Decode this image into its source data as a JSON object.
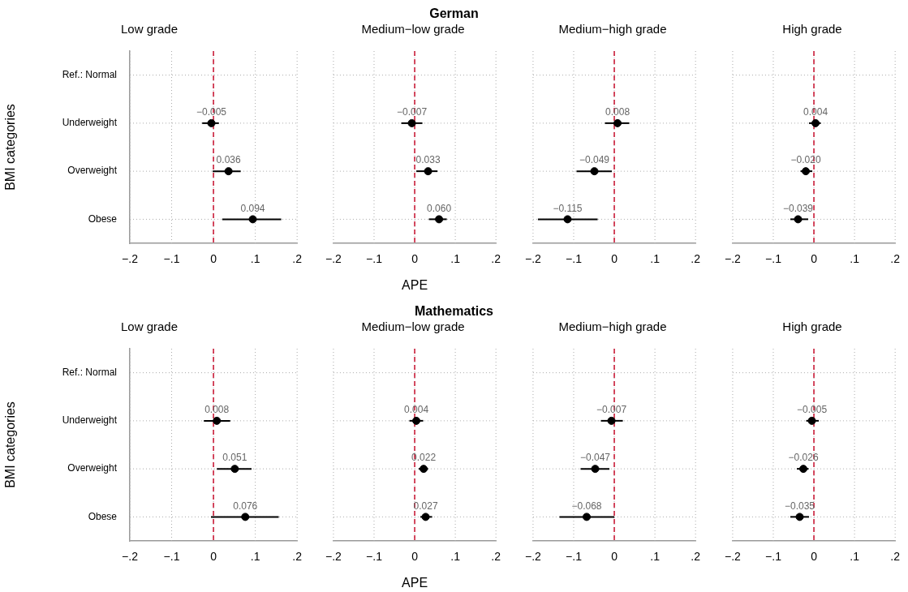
{
  "chart_data": [
    {
      "type": "scatter",
      "orientation": "horizontal",
      "title": "Low grade",
      "annotations": [
        "German"
      ],
      "ylabel": "BMI categories",
      "categories": [
        "Ref.: Normal",
        "Underweight",
        "Overweight",
        "Obese"
      ],
      "values": [
        null,
        -0.005,
        0.036,
        0.094
      ],
      "errors": [
        null,
        [
          -0.027,
          0.013
        ],
        [
          -0.002,
          0.065
        ],
        [
          0.021,
          0.162
        ]
      ],
      "value_labels": [
        null,
        "−0.005",
        "0.036",
        "0.094"
      ],
      "color": "#000000",
      "marker": "circle",
      "xlim": [
        -0.2,
        0.2
      ],
      "xticks": [
        {
          "value": -0.2,
          "label": "−.2"
        },
        {
          "value": -0.1,
          "label": "−.1"
        },
        {
          "value": 0,
          "label": "0"
        },
        {
          "value": 0.1,
          "label": ".1"
        },
        {
          "value": 0.2,
          "label": ".2"
        }
      ],
      "ref_lines": [
        {
          "axis": "x",
          "value": 0,
          "color": "#c8102e",
          "line_style": "dashed"
        }
      ],
      "grid": true
    },
    {
      "type": "scatter",
      "orientation": "horizontal",
      "title": "Medium−low grade",
      "xlabel": "APE",
      "categories": [
        null,
        null,
        null,
        null
      ],
      "values": [
        null,
        -0.007,
        0.033,
        0.06
      ],
      "errors": [
        null,
        [
          -0.033,
          0.019
        ],
        [
          0.004,
          0.056
        ],
        [
          0.035,
          0.079
        ]
      ],
      "value_labels": [
        null,
        "−0.007",
        "0.033",
        "0.060"
      ],
      "color": "#000000",
      "marker": "circle",
      "xlim": [
        -0.2,
        0.2
      ],
      "xticks": [
        {
          "value": -0.2,
          "label": "−.2"
        },
        {
          "value": -0.1,
          "label": "−.1"
        },
        {
          "value": 0,
          "label": "0"
        },
        {
          "value": 0.1,
          "label": ".1"
        },
        {
          "value": 0.2,
          "label": ".2"
        }
      ],
      "ref_lines": [
        {
          "axis": "x",
          "value": 0,
          "color": "#c8102e",
          "line_style": "dashed"
        }
      ],
      "grid": true,
      "tick_labels": "x"
    },
    {
      "type": "scatter",
      "orientation": "horizontal",
      "title": "Medium−high grade",
      "categories": [
        null,
        null,
        null,
        null
      ],
      "values": [
        null,
        0.008,
        -0.049,
        -0.115
      ],
      "errors": [
        null,
        [
          -0.023,
          0.037
        ],
        [
          -0.093,
          -0.006
        ],
        [
          -0.188,
          -0.041
        ]
      ],
      "value_labels": [
        null,
        "0.008",
        "−0.049",
        "−0.115"
      ],
      "color": "#000000",
      "marker": "circle",
      "xlim": [
        -0.2,
        0.2
      ],
      "xticks": [
        {
          "value": -0.2,
          "label": "−.2"
        },
        {
          "value": -0.1,
          "label": "−.1"
        },
        {
          "value": 0,
          "label": "0"
        },
        {
          "value": 0.1,
          "label": ".1"
        },
        {
          "value": 0.2,
          "label": ".2"
        }
      ],
      "ref_lines": [
        {
          "axis": "x",
          "value": 0,
          "color": "#c8102e",
          "line_style": "dashed"
        }
      ],
      "grid": true,
      "tick_labels": "x"
    },
    {
      "type": "scatter",
      "orientation": "horizontal",
      "title": "High grade",
      "categories": [
        null,
        null,
        null,
        null
      ],
      "values": [
        null,
        0.004,
        -0.02,
        -0.039
      ],
      "errors": [
        null,
        [
          -0.012,
          0.017
        ],
        [
          -0.033,
          -0.004
        ],
        [
          -0.058,
          -0.014
        ]
      ],
      "value_labels": [
        null,
        "0.004",
        "−0.020",
        "−0.039"
      ],
      "color": "#000000",
      "marker": "circle",
      "xlim": [
        -0.2,
        0.2
      ],
      "xticks": [
        {
          "value": -0.2,
          "label": "−.2"
        },
        {
          "value": -0.1,
          "label": "−.1"
        },
        {
          "value": 0,
          "label": "0"
        },
        {
          "value": 0.1,
          "label": ".1"
        },
        {
          "value": 0.2,
          "label": ".2"
        }
      ],
      "ref_lines": [
        {
          "axis": "x",
          "value": 0,
          "color": "#c8102e",
          "line_style": "dashed"
        }
      ],
      "grid": true,
      "tick_labels": "x"
    },
    {
      "type": "scatter",
      "orientation": "horizontal",
      "title": "Low grade",
      "annotations": [
        "Mathematics"
      ],
      "ylabel": "BMI categories",
      "categories": [
        "Ref.: Normal",
        "Underweight",
        "Overweight",
        "Obese"
      ],
      "values": [
        null,
        0.008,
        0.051,
        0.076
      ],
      "errors": [
        null,
        [
          -0.023,
          0.04
        ],
        [
          0.008,
          0.091
        ],
        [
          -0.006,
          0.156
        ]
      ],
      "value_labels": [
        null,
        "0.008",
        "0.051",
        "0.076"
      ],
      "color": "#000000",
      "marker": "circle",
      "xlim": [
        -0.2,
        0.2
      ],
      "xticks": [
        {
          "value": -0.2,
          "label": "−.2"
        },
        {
          "value": -0.1,
          "label": "−.1"
        },
        {
          "value": 0,
          "label": "0"
        },
        {
          "value": 0.1,
          "label": ".1"
        },
        {
          "value": 0.2,
          "label": ".2"
        }
      ],
      "ref_lines": [
        {
          "axis": "x",
          "value": 0,
          "color": "#c8102e",
          "line_style": "dashed"
        }
      ],
      "grid": true
    },
    {
      "type": "scatter",
      "orientation": "horizontal",
      "title": "Medium−low grade",
      "xlabel": "APE",
      "categories": [
        null,
        null,
        null,
        null
      ],
      "values": [
        null,
        0.004,
        0.022,
        0.027
      ],
      "errors": [
        null,
        [
          -0.013,
          0.021
        ],
        [
          0.01,
          0.033
        ],
        [
          0.014,
          0.043
        ]
      ],
      "value_labels": [
        null,
        "0.004",
        "0.022",
        "0.027"
      ],
      "color": "#000000",
      "marker": "circle",
      "xlim": [
        -0.2,
        0.2
      ],
      "xticks": [
        {
          "value": -0.2,
          "label": "−.2"
        },
        {
          "value": -0.1,
          "label": "−.1"
        },
        {
          "value": 0,
          "label": "0"
        },
        {
          "value": 0.1,
          "label": ".1"
        },
        {
          "value": 0.2,
          "label": ".2"
        }
      ],
      "ref_lines": [
        {
          "axis": "x",
          "value": 0,
          "color": "#c8102e",
          "line_style": "dashed"
        }
      ],
      "grid": true,
      "tick_labels": "x"
    },
    {
      "type": "scatter",
      "orientation": "horizontal",
      "title": "Medium−high grade",
      "categories": [
        null,
        null,
        null,
        null
      ],
      "values": [
        null,
        -0.007,
        -0.047,
        -0.068
      ],
      "errors": [
        null,
        [
          -0.033,
          0.021
        ],
        [
          -0.083,
          -0.012
        ],
        [
          -0.135,
          0
        ]
      ],
      "value_labels": [
        null,
        "−0.007",
        "−0.047",
        "−0.068"
      ],
      "color": "#000000",
      "marker": "circle",
      "xlim": [
        -0.2,
        0.2
      ],
      "xticks": [
        {
          "value": -0.2,
          "label": "−.2"
        },
        {
          "value": -0.1,
          "label": "−.1"
        },
        {
          "value": 0,
          "label": "0"
        },
        {
          "value": 0.1,
          "label": ".1"
        },
        {
          "value": 0.2,
          "label": ".2"
        }
      ],
      "ref_lines": [
        {
          "axis": "x",
          "value": 0,
          "color": "#c8102e",
          "line_style": "dashed"
        }
      ],
      "grid": true,
      "tick_labels": "x"
    },
    {
      "type": "scatter",
      "orientation": "horizontal",
      "title": "High grade",
      "categories": [
        null,
        null,
        null,
        null
      ],
      "values": [
        null,
        -0.005,
        -0.026,
        -0.035
      ],
      "errors": [
        null,
        [
          -0.019,
          0.012
        ],
        [
          -0.042,
          -0.013
        ],
        [
          -0.058,
          -0.012
        ]
      ],
      "value_labels": [
        null,
        "−0.005",
        "−0.026",
        "−0.035"
      ],
      "color": "#000000",
      "marker": "circle",
      "xlim": [
        -0.2,
        0.2
      ],
      "xticks": [
        {
          "value": -0.2,
          "label": "−.2"
        },
        {
          "value": -0.1,
          "label": "−.1"
        },
        {
          "value": 0,
          "label": "0"
        },
        {
          "value": 0.1,
          "label": ".1"
        },
        {
          "value": 0.2,
          "label": ".2"
        }
      ],
      "ref_lines": [
        {
          "axis": "x",
          "value": 0,
          "color": "#c8102e",
          "line_style": "dashed"
        }
      ],
      "grid": true,
      "tick_labels": "x"
    }
  ]
}
